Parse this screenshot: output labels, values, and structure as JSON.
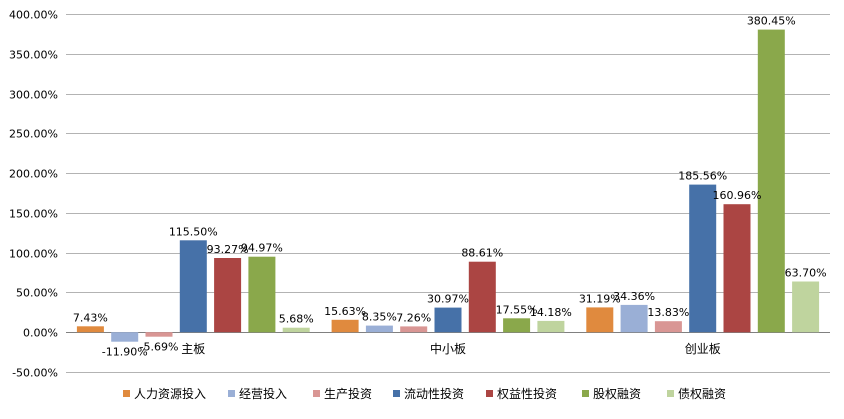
{
  "chart_data": {
    "type": "bar",
    "title": "",
    "xlabel": "",
    "ylabel": "",
    "categories": [
      "主板",
      "中小板",
      "创业板"
    ],
    "ylim": [
      -50,
      400
    ],
    "yticks": [
      -50,
      0,
      50,
      100,
      150,
      200,
      250,
      300,
      350,
      400
    ],
    "ytick_labels": [
      "-50.00%",
      "0.00%",
      "50.00%",
      "100.00%",
      "150.00%",
      "200.00%",
      "250.00%",
      "300.00%",
      "350.00%",
      "400.00%"
    ],
    "grid": true,
    "legend_position": "bottom",
    "series": [
      {
        "name": "人力资源投入",
        "color": "#e08a3e",
        "values": [
          7.43,
          15.63,
          31.19
        ],
        "labels": [
          "7.43%",
          "15.63%",
          "31.19%"
        ]
      },
      {
        "name": "经营投入",
        "color": "#9aafd6",
        "values": [
          -11.9,
          8.35,
          34.36
        ],
        "labels": [
          "-11.90%",
          "8.35%",
          "34.36%"
        ]
      },
      {
        "name": "生产投资",
        "color": "#d99694",
        "values": [
          -5.69,
          7.26,
          13.83
        ],
        "labels": [
          "-5.69%",
          "7.26%",
          "13.83%"
        ]
      },
      {
        "name": "流动性投资",
        "color": "#4671a8",
        "values": [
          115.5,
          30.97,
          185.56
        ],
        "labels": [
          "115.50%",
          "30.97%",
          "185.56%"
        ]
      },
      {
        "name": "权益性投资",
        "color": "#ab4543",
        "values": [
          93.27,
          88.61,
          160.96
        ],
        "labels": [
          "93.27%",
          "88.61%",
          "160.96%"
        ]
      },
      {
        "name": "股权融资",
        "color": "#8aa84b",
        "values": [
          94.97,
          17.55,
          380.45
        ],
        "labels": [
          "94.97%",
          "17.55%",
          "380.45%"
        ]
      },
      {
        "name": "债权融资",
        "color": "#bfd49e",
        "values": [
          5.68,
          14.18,
          63.7
        ],
        "labels": [
          "5.68%",
          "14.18%",
          "63.70%"
        ]
      }
    ]
  }
}
